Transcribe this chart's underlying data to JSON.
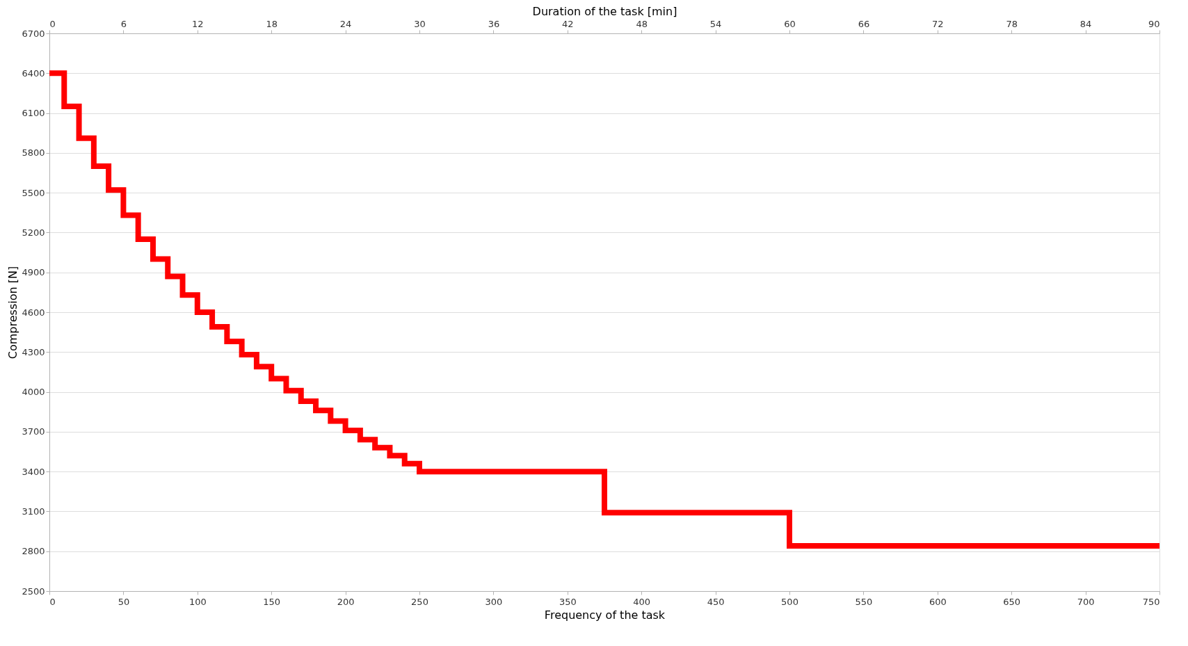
{
  "chart_data": {
    "type": "step",
    "xlabel": "Frequency of the task",
    "ylabel": "Compression [N]",
    "x2label": "Duration of the task [min]",
    "x": [
      0,
      10,
      20,
      30,
      40,
      50,
      60,
      70,
      80,
      90,
      100,
      110,
      120,
      130,
      140,
      150,
      160,
      170,
      180,
      190,
      200,
      210,
      220,
      230,
      240,
      250,
      375,
      500,
      750
    ],
    "series": [
      {
        "color": "#ff0000",
        "values": [
          6400,
          6150,
          5910,
          5700,
          5520,
          5330,
          5150,
          5000,
          4870,
          4730,
          4600,
          4490,
          4380,
          4280,
          4190,
          4100,
          4010,
          3930,
          3860,
          3780,
          3710,
          3640,
          3580,
          3520,
          3460,
          3400,
          3090,
          2840,
          2840
        ]
      }
    ],
    "xlim": [
      0,
      750
    ],
    "xticks": [
      0,
      50,
      100,
      150,
      200,
      250,
      300,
      350,
      400,
      450,
      500,
      550,
      600,
      650,
      700,
      750
    ],
    "x2lim": [
      0,
      90
    ],
    "x2ticks": [
      0,
      6,
      12,
      18,
      24,
      30,
      36,
      42,
      48,
      54,
      60,
      66,
      72,
      78,
      84,
      90
    ],
    "ylim": [
      2500,
      6700
    ],
    "yticks": [
      2500,
      2800,
      3100,
      3400,
      3700,
      4000,
      4300,
      4600,
      4900,
      5200,
      5500,
      5800,
      6100,
      6400,
      6700
    ],
    "grid": "y",
    "marker": "none",
    "line_style": "solid"
  }
}
